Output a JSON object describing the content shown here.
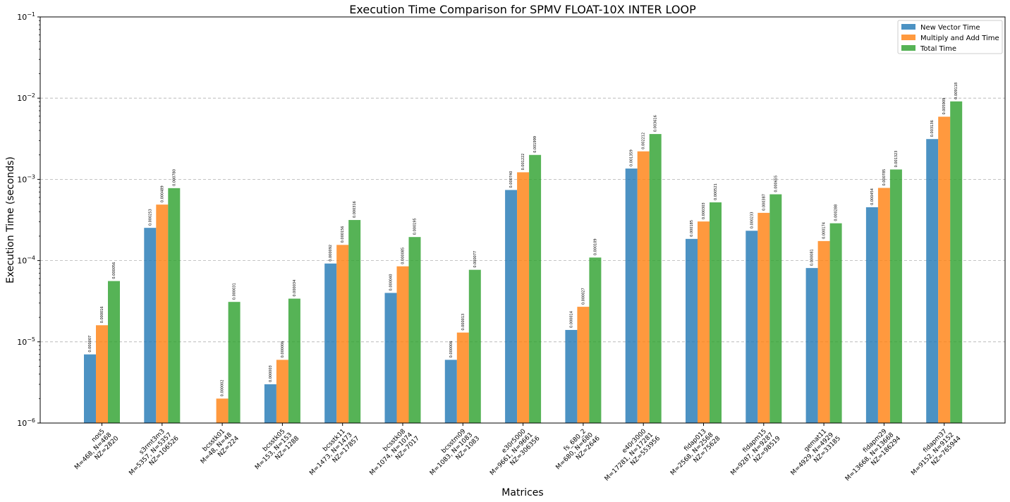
{
  "chart_data": {
    "type": "bar",
    "title": "Execution Time Comparison for SPMV FLOAT-10X INTER LOOP",
    "xlabel": "Matrices",
    "ylabel": "Execution Time (seconds)",
    "yscale": "log",
    "ylim": [
      1e-06,
      0.1
    ],
    "y_ticks": [
      {
        "value": 1e-06,
        "base": "10",
        "exp": "−6"
      },
      {
        "value": 1e-05,
        "base": "10",
        "exp": "−5"
      },
      {
        "value": 0.0001,
        "base": "10",
        "exp": "−4"
      },
      {
        "value": 0.001,
        "base": "10",
        "exp": "−3"
      },
      {
        "value": 0.01,
        "base": "10",
        "exp": "−2"
      },
      {
        "value": 0.1,
        "base": "10",
        "exp": "−1"
      }
    ],
    "grid": "y-major dashed",
    "legend_position": "top-right",
    "categories": [
      [
        "nos5",
        "M=468, N=468",
        "NZ=2820"
      ],
      [
        "s3rmt3m3",
        "M=5357, N=5357",
        "NZ=106526"
      ],
      [
        "bcsstk01",
        "M=48, N=48",
        "NZ=224"
      ],
      [
        "bcsstk05",
        "M=153, N=153",
        "NZ=1288"
      ],
      [
        "bcsstk11",
        "M=1473, N=1473",
        "NZ=17857"
      ],
      [
        "bcsstk08",
        "M=1074, N=1074",
        "NZ=7017"
      ],
      [
        "bcsstm09",
        "M=1083, N=1083",
        "NZ=1083"
      ],
      [
        "e30r5000",
        "M=9661, N=9661",
        "NZ=306356"
      ],
      [
        "fs_680_2",
        "M=680, N=680",
        "NZ=2646"
      ],
      [
        "e40r3000",
        "M=17281, N=17281",
        "NZ=553956"
      ],
      [
        "fidap013",
        "M=2568, N=2568",
        "NZ=75628"
      ],
      [
        "fidapm15",
        "M=9287, N=9287",
        "NZ=98519"
      ],
      [
        "gemat11",
        "M=4929, N=4929",
        "NZ=33185"
      ],
      [
        "fidapm29",
        "M=13668, N=13668",
        "NZ=186294"
      ],
      [
        "fidapm37",
        "M=9152, N=9152",
        "NZ=765944"
      ]
    ],
    "series": [
      {
        "name": "New Vector Time",
        "color": "#1f77b4",
        "values": [
          7e-06,
          0.000253,
          0.0,
          3e-06,
          9.2e-05,
          4e-05,
          6e-06,
          0.00074,
          1.4e-05,
          0.001359,
          0.000185,
          0.000233,
          8.1e-05,
          0.000454,
          0.003136
        ],
        "labels": [
          "0.000007",
          "0.000253",
          "",
          "0.000003",
          "0.000092",
          "0.000040",
          "0.000006",
          "0.000740",
          "0.000014",
          "0.001359",
          "0.000185",
          "0.000233",
          "0.000081",
          "0.000454",
          "0.003136"
        ]
      },
      {
        "name": "Multiply and Add Time",
        "color": "#ff7f0e",
        "values": [
          1.6e-05,
          0.000489,
          2e-06,
          6e-06,
          0.000156,
          8.5e-05,
          1.3e-05,
          0.001222,
          2.7e-05,
          0.002212,
          0.000303,
          0.000387,
          0.000174,
          0.000785,
          0.005909
        ],
        "labels": [
          "0.000016",
          "0.000489",
          "0.000002",
          "0.000006",
          "0.000156",
          "0.000085",
          "0.000013",
          "0.001222",
          "0.000027",
          "0.002212",
          "0.000303",
          "0.000387",
          "0.000174",
          "0.000785",
          "0.005909"
        ]
      },
      {
        "name": "Total Time",
        "color": "#2ca02c",
        "values": [
          5.6e-05,
          0.00078,
          3.1e-05,
          3.4e-05,
          0.000316,
          0.000195,
          7.7e-05,
          0.001999,
          0.000109,
          0.003616,
          0.000521,
          0.000655,
          0.000288,
          0.001323,
          0.009118
        ],
        "labels": [
          "0.000056",
          "0.000780",
          "0.000031",
          "0.000034",
          "0.000316",
          "0.000195",
          "0.000077",
          "0.001999",
          "0.000109",
          "0.003616",
          "0.000521",
          "0.000655",
          "0.000288",
          "0.001323",
          "0.009118"
        ]
      }
    ]
  }
}
